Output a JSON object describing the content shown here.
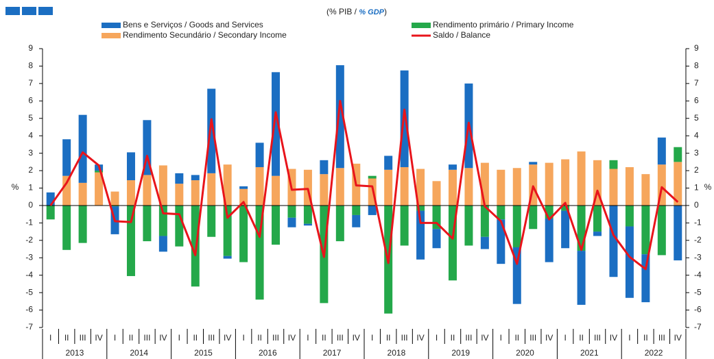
{
  "chart_data": {
    "type": "bar",
    "subtitle": [
      "(% PIB / ",
      "% GDP",
      ")"
    ],
    "y_label": "%",
    "y2_label": "%",
    "categories": [
      "I",
      "II",
      "III",
      "IV",
      "I",
      "II",
      "III",
      "IV",
      "I",
      "II",
      "III",
      "IV",
      "I",
      "II",
      "III",
      "IV",
      "I",
      "II",
      "III",
      "IV",
      "I",
      "II",
      "III",
      "IV",
      "I",
      "II",
      "III",
      "IV",
      "I",
      "II",
      "III",
      "IV",
      "I",
      "II",
      "III",
      "IV",
      "I",
      "II",
      "III",
      "IV"
    ],
    "years": [
      "2013",
      "2014",
      "2015",
      "2016",
      "2017",
      "2018",
      "2019",
      "2020",
      "2021",
      "2022"
    ],
    "ylim": [
      -7,
      9
    ],
    "yticks": [
      -7,
      -6,
      -5,
      -4,
      -3,
      -2,
      -1,
      0,
      1,
      2,
      3,
      4,
      5,
      6,
      7,
      8,
      9
    ],
    "y2lim": [
      -7,
      9
    ],
    "y2ticks": [
      -7,
      -6,
      -5,
      -4,
      -3,
      -2,
      -1,
      0,
      1,
      2,
      3,
      4,
      5,
      6,
      7,
      8,
      9
    ],
    "stacked": true,
    "series": [
      {
        "name": "Bens e Serviços / Goods and Services",
        "color": "#1b6ec2",
        "type": "bar",
        "values": [
          0.75,
          2.1,
          3.9,
          0.35,
          -1.6,
          1.6,
          3.15,
          -0.9,
          0.6,
          0.3,
          4.85,
          -0.15,
          0.15,
          1.4,
          5.95,
          -0.55,
          -0.1,
          0.8,
          5.9,
          -0.7,
          -0.55,
          0.8,
          5.55,
          -2.8,
          -1.1,
          0.3,
          4.85,
          -0.7,
          -2.55,
          -3.25,
          0.15,
          -2.5,
          -2.15,
          -3.1,
          -0.25,
          -4.1,
          -4.1,
          -2.75,
          1.55,
          -3.15
        ]
      },
      {
        "name": "Rendimento primário / Primary Income",
        "color": "#24a84a",
        "type": "bar",
        "values": [
          -0.8,
          -2.55,
          -2.15,
          0.1,
          -0.05,
          -4.05,
          -2.05,
          -1.75,
          -2.35,
          -4.65,
          -1.8,
          -2.9,
          -3.25,
          -5.4,
          -2.25,
          -0.7,
          -1.05,
          -5.6,
          -2.05,
          -0.55,
          0.15,
          -6.2,
          -2.3,
          -0.3,
          -1.35,
          -4.3,
          -2.3,
          -1.8,
          -0.8,
          -2.4,
          -1.35,
          -0.75,
          -0.3,
          -2.6,
          -1.5,
          0.5,
          -1.2,
          -2.8,
          -2.85,
          0.85
        ]
      },
      {
        "name": "Rendimento Secundário / Secondary Income",
        "color": "#f6a65c",
        "type": "bar",
        "values": [
          0,
          1.7,
          1.3,
          1.9,
          0.8,
          1.45,
          1.75,
          2.3,
          1.25,
          1.45,
          1.85,
          2.35,
          0.95,
          2.2,
          1.7,
          2.1,
          2.05,
          1.8,
          2.15,
          2.4,
          1.55,
          2.05,
          2.2,
          2.1,
          1.4,
          2.05,
          2.15,
          2.45,
          2.05,
          2.15,
          2.35,
          2.45,
          2.65,
          3.1,
          2.6,
          2.1,
          2.2,
          1.8,
          2.35,
          2.5
        ]
      },
      {
        "name": "Saldo / Balance",
        "color": "#e8141b",
        "type": "line",
        "values": [
          0,
          1.3,
          3.05,
          2.3,
          -0.9,
          -0.95,
          2.85,
          -0.45,
          -0.5,
          -2.85,
          4.95,
          -0.7,
          0.2,
          -1.8,
          5.35,
          0.9,
          0.95,
          -2.95,
          6.0,
          1.15,
          1.1,
          -3.3,
          5.5,
          -1.0,
          -1.0,
          -1.9,
          4.75,
          -0.05,
          -0.9,
          -3.35,
          1.1,
          -0.8,
          0.15,
          -2.55,
          0.85,
          -1.7,
          -2.95,
          -3.65,
          1.05,
          0.2
        ]
      }
    ]
  }
}
